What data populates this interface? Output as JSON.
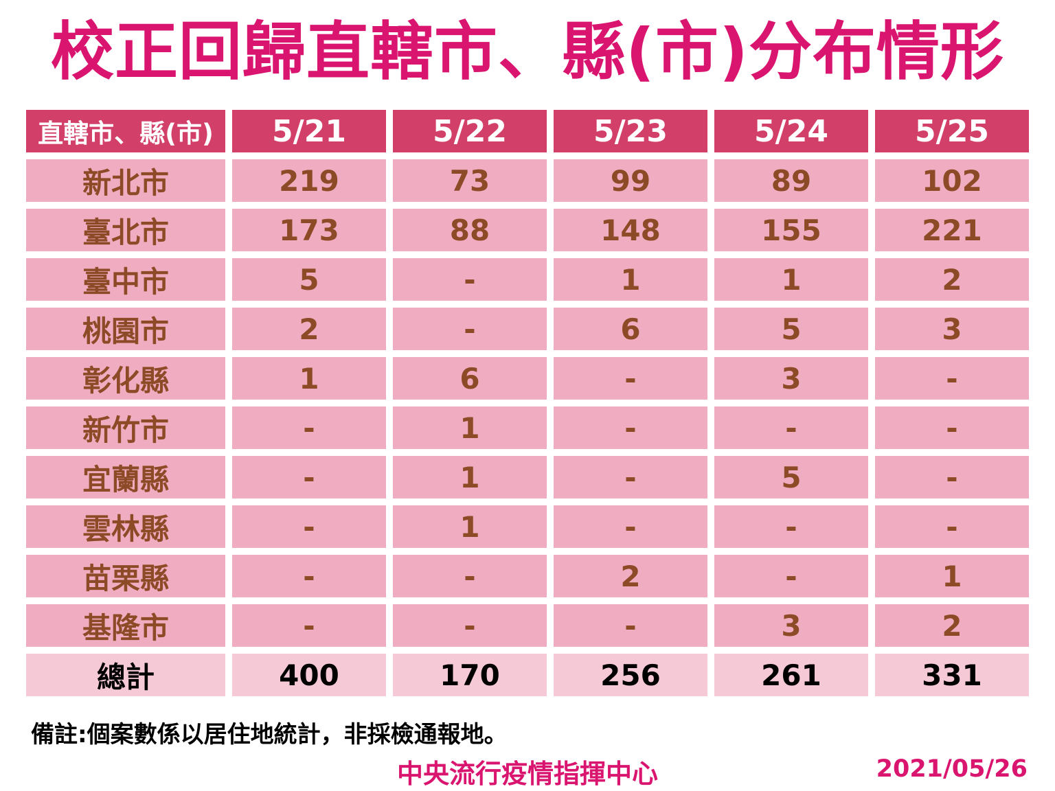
{
  "title": "校正回歸直轄市、縣(市)分布情形",
  "chart_data": {
    "type": "table",
    "title": "校正回歸直轄市、縣(市)分布情形",
    "columns": [
      "直轄市、縣(市)",
      "5/21",
      "5/22",
      "5/23",
      "5/24",
      "5/25"
    ],
    "rows": [
      {
        "label": "新北市",
        "values": [
          "219",
          "73",
          "99",
          "89",
          "102"
        ]
      },
      {
        "label": "臺北市",
        "values": [
          "173",
          "88",
          "148",
          "155",
          "221"
        ]
      },
      {
        "label": "臺中市",
        "values": [
          "5",
          "-",
          "1",
          "1",
          "2"
        ]
      },
      {
        "label": "桃園市",
        "values": [
          "2",
          "-",
          "6",
          "5",
          "3"
        ]
      },
      {
        "label": "彰化縣",
        "values": [
          "1",
          "6",
          "-",
          "3",
          "-"
        ]
      },
      {
        "label": "新竹市",
        "values": [
          "-",
          "1",
          "-",
          "-",
          "-"
        ]
      },
      {
        "label": "宜蘭縣",
        "values": [
          "-",
          "1",
          "-",
          "5",
          "-"
        ]
      },
      {
        "label": "雲林縣",
        "values": [
          "-",
          "1",
          "-",
          "-",
          "-"
        ]
      },
      {
        "label": "苗栗縣",
        "values": [
          "-",
          "-",
          "2",
          "-",
          "1"
        ]
      },
      {
        "label": "基隆市",
        "values": [
          "-",
          "-",
          "-",
          "3",
          "2"
        ]
      }
    ],
    "total_row": {
      "label": "總計",
      "values": [
        "400",
        "170",
        "256",
        "261",
        "331"
      ]
    }
  },
  "footer": {
    "note": "備註:個案數係以居住地統計，非採檢通報地。",
    "org": "中央流行疫情指揮中心",
    "date": "2021/05/26"
  },
  "colors": {
    "title": "#d9156f",
    "header_bg": "#d23f68",
    "header_text": "#ffffff",
    "row_bg": "#f0adc1",
    "row_text": "#8d4a26",
    "total_bg": "#f5c9d6",
    "total_text": "#000000",
    "page_bg": "#ffffff"
  }
}
